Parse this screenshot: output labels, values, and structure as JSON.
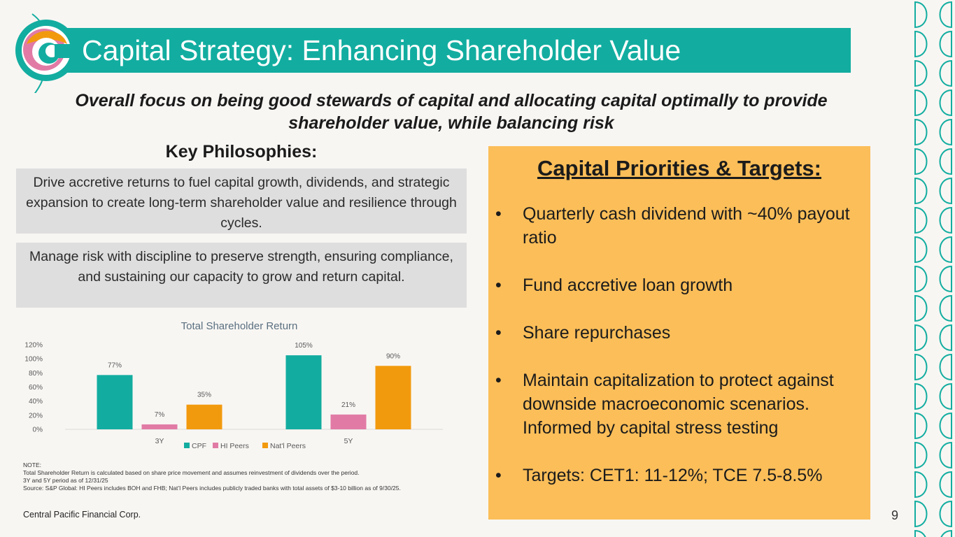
{
  "header": {
    "title": "Capital Strategy: Enhancing Shareholder Value"
  },
  "subtitle": {
    "line1": "Overall focus on being good stewards of capital and allocating capital optimally to provide",
    "line2": "shareholder value, while balancing risk"
  },
  "key_philosophies": {
    "title": "Key Philosophies:",
    "items": [
      "Drive accretive returns to fuel capital growth, dividends, and strategic expansion to create long-term shareholder value and resilience through cycles.",
      "Manage risk with discipline to preserve strength, ensuring compliance, and sustaining our capacity to grow and return capital."
    ]
  },
  "chart_data": {
    "type": "bar",
    "title": "Total Shareholder Return",
    "categories": [
      "3Y",
      "5Y"
    ],
    "series": [
      {
        "name": "CPF",
        "values": [
          77,
          105
        ],
        "labels": [
          "77%",
          "105%"
        ],
        "color": "#12ada0"
      },
      {
        "name": "HI Peers",
        "values": [
          7,
          21
        ],
        "labels": [
          "7%",
          "21%"
        ],
        "color": "#e17ba5"
      },
      {
        "name": "Nat'l Peers",
        "values": [
          35,
          90
        ],
        "labels": [
          "35%",
          "90%"
        ],
        "color": "#f29a0e"
      }
    ],
    "ylim": [
      0,
      120
    ],
    "yticks": [
      "0%",
      "20%",
      "40%",
      "60%",
      "80%",
      "100%",
      "120%"
    ],
    "legend": "bottom",
    "grid": false
  },
  "notes": {
    "heading": "NOTE:",
    "lines": [
      "Total Shareholder Return is calculated based on share price movement and assumes reinvestment of dividends over the period.",
      "3Y and 5Y period as of 12/31/25",
      "Source: S&P Global:  HI Peers includes BOH and FHB; Nat’l Peers includes publicly traded banks with total assets of $3-10 billion as of 9/30/25."
    ]
  },
  "priorities": {
    "title": "Capital Priorities & Targets:",
    "bullet": "•",
    "items": [
      "Quarterly cash dividend with ~40% payout ratio",
      "Fund accretive loan growth",
      "Share repurchases",
      "Maintain capitalization to protect against downside macroeconomic scenarios. Informed by capital stress testing",
      "Targets: CET1: 11-12%; TCE 7.5-8.5%"
    ]
  },
  "footer": {
    "company": "Central Pacific Financial Corp.",
    "page_number": "9"
  },
  "colors": {
    "teal": "#12ada0",
    "orange_panel": "#fbbe59",
    "gray_box": "#dedede",
    "background": "#f8f6f3"
  }
}
